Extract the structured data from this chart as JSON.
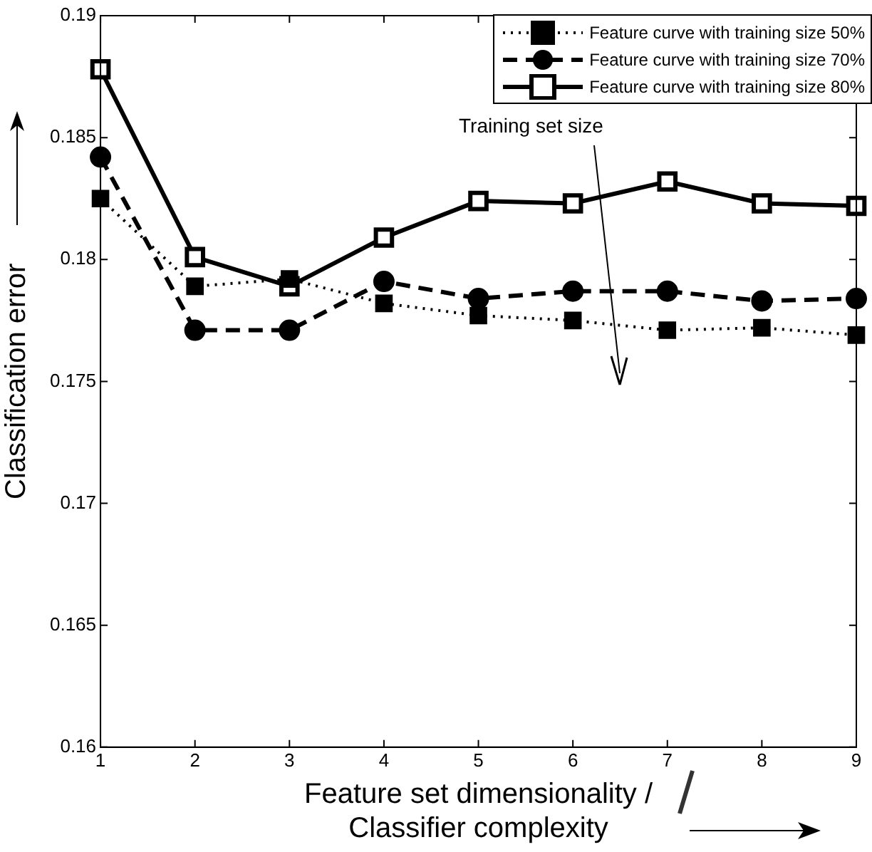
{
  "chart_data": {
    "type": "line",
    "xlabel": "Feature set dimensionality /\nClassifier complexity",
    "ylabel": "Classification error",
    "x": [
      1,
      2,
      3,
      4,
      5,
      6,
      7,
      8,
      9
    ],
    "series": [
      {
        "name": "Feature curve with training size 50%",
        "color": "#000000",
        "marker": "square",
        "line_style": "dotted",
        "values": [
          0.1825,
          0.1789,
          0.1792,
          0.1782,
          0.1777,
          0.1775,
          0.1771,
          0.1772,
          0.1769
        ]
      },
      {
        "name": "Feature curve with training size 70%",
        "color": "#000000",
        "marker": "circle",
        "line_style": "dashed",
        "values": [
          0.1842,
          0.1771,
          0.1771,
          0.1791,
          0.1784,
          0.1787,
          0.1787,
          0.1783,
          0.1784
        ]
      },
      {
        "name": "Feature curve with training size 80%",
        "color": "#000000",
        "marker": "square",
        "line_style": "solid",
        "values": [
          0.1878,
          0.1801,
          0.1789,
          0.1809,
          0.1824,
          0.1823,
          0.1832,
          0.1823,
          0.1822
        ]
      }
    ],
    "xlim": [
      1,
      9
    ],
    "xticks": [
      1,
      2,
      3,
      4,
      5,
      6,
      7,
      8,
      9
    ],
    "ylim": [
      0.16,
      0.19
    ],
    "yticks": [
      0.16,
      0.165,
      0.17,
      0.175,
      0.18,
      0.185,
      0.19
    ],
    "grid": false,
    "legend": "top right",
    "annotations": [
      "Training set size"
    ]
  }
}
